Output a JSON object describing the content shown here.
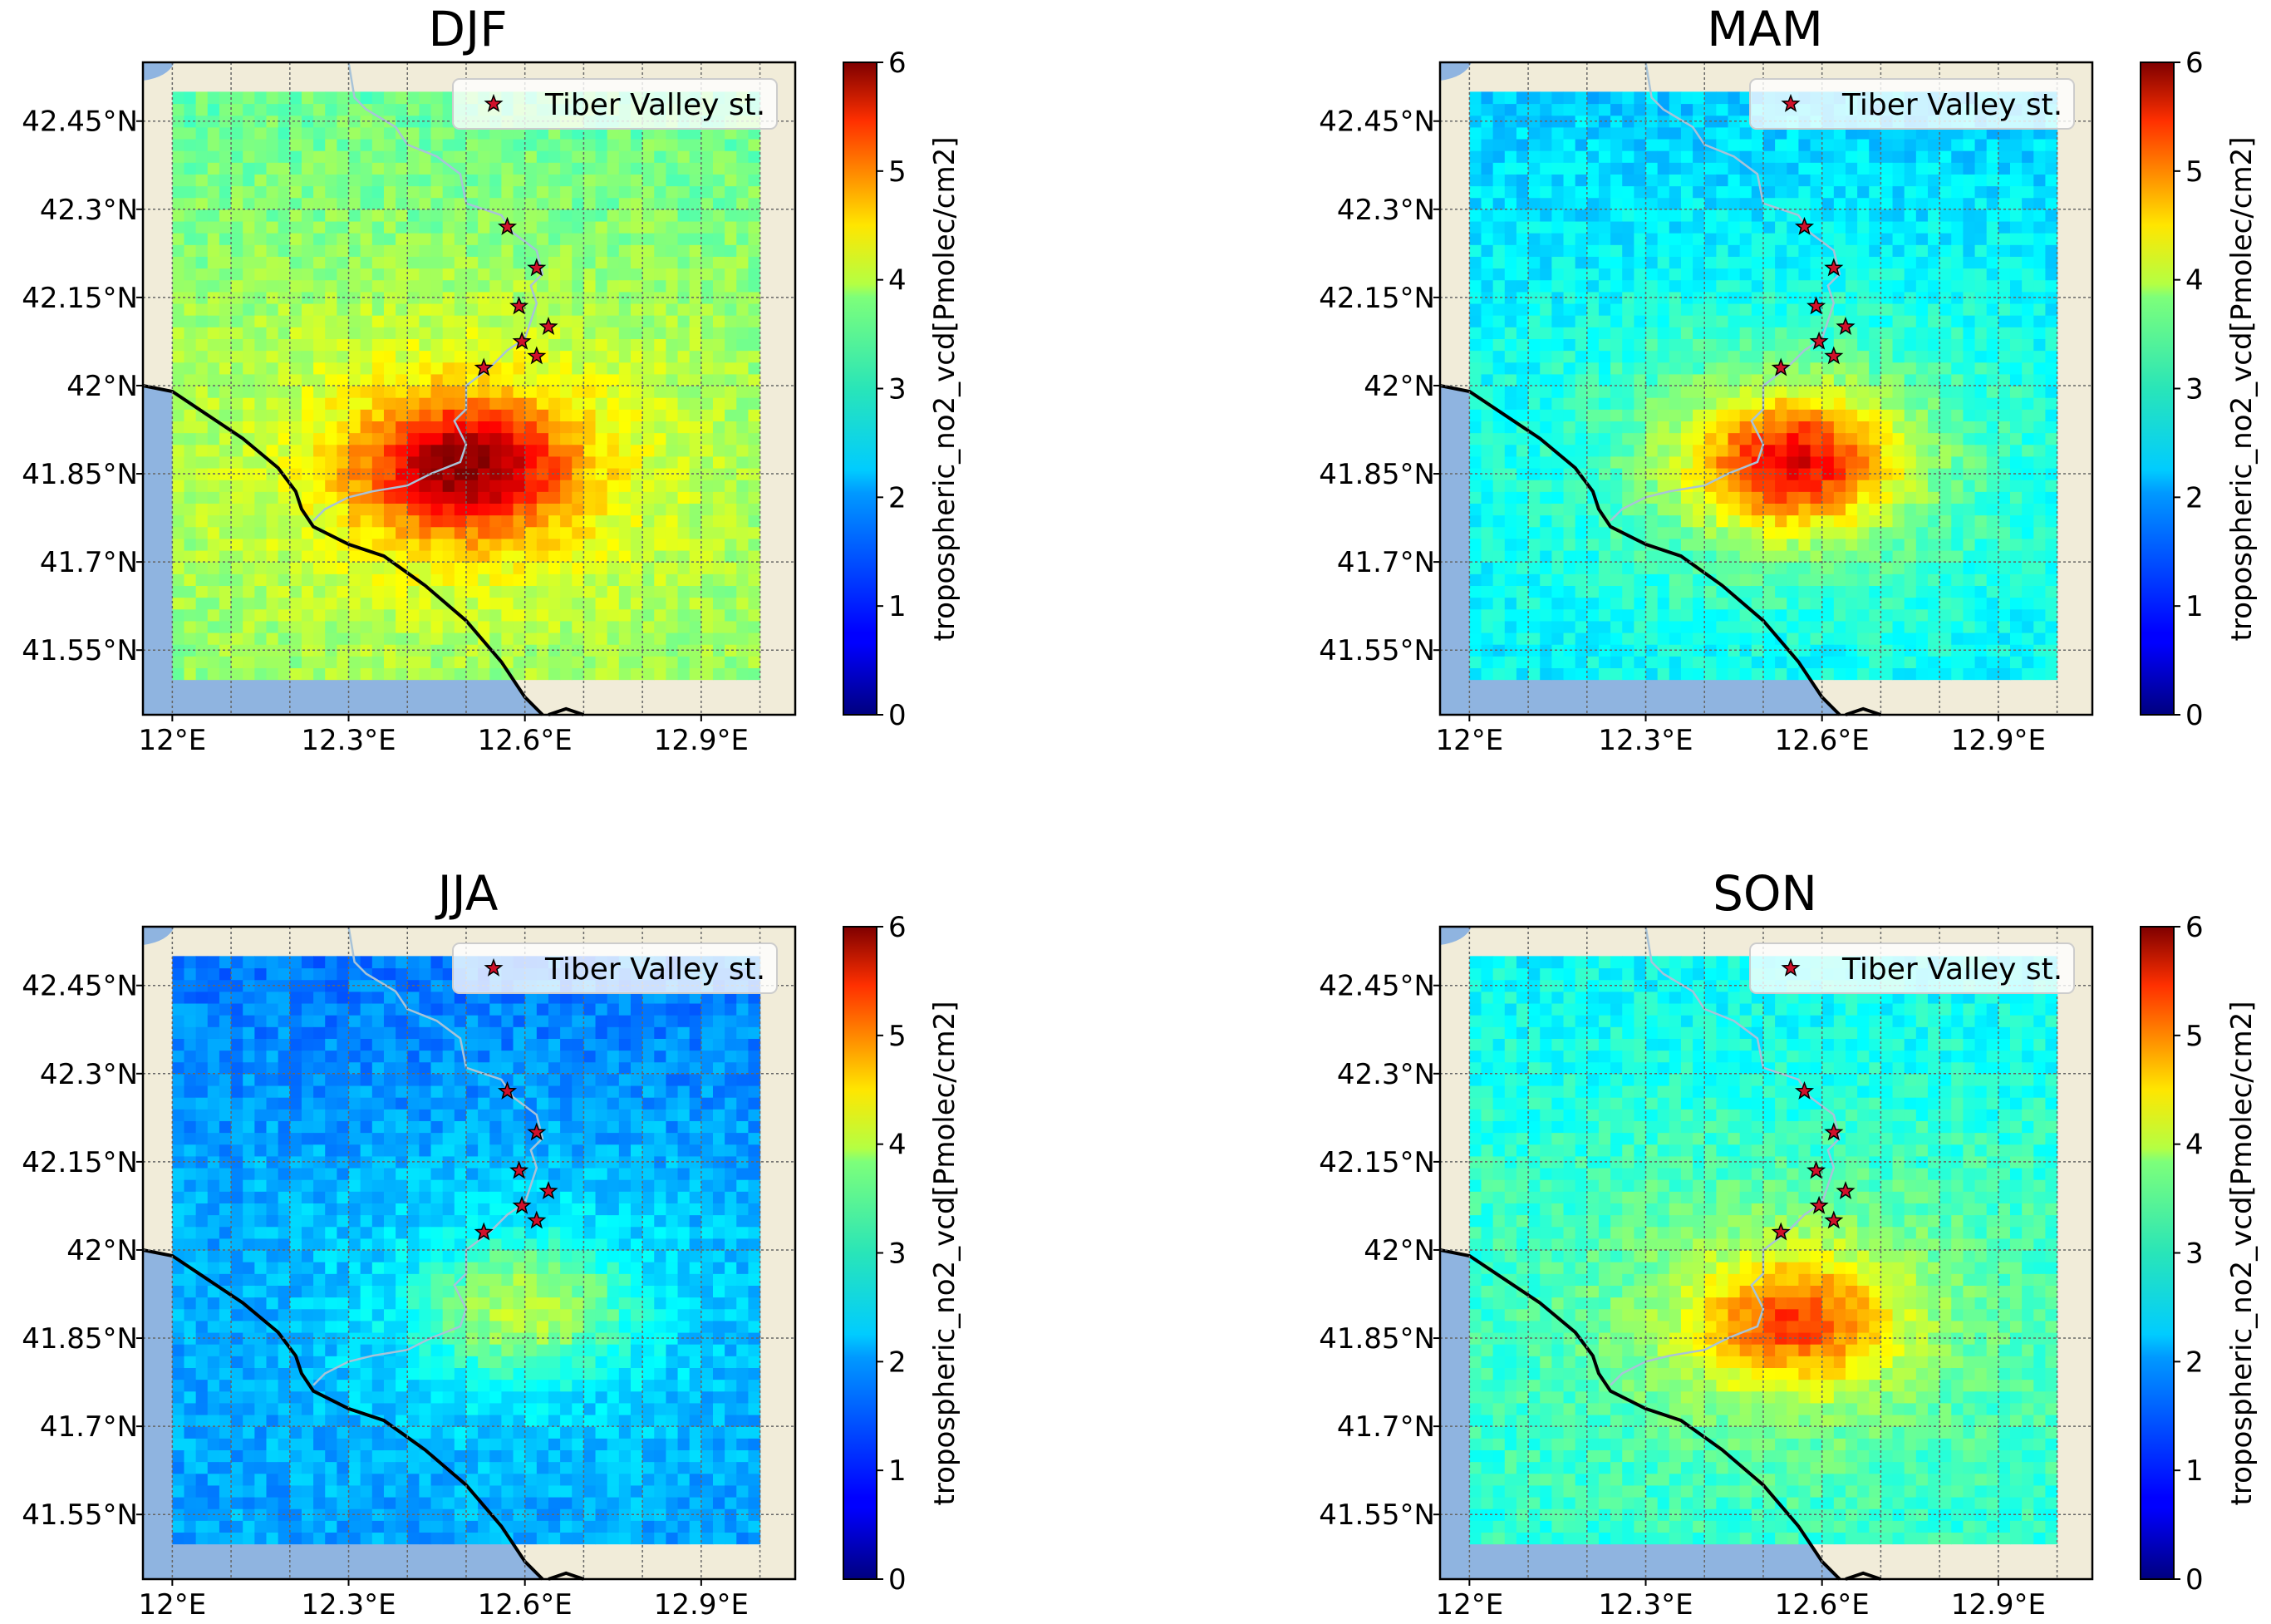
{
  "colors": {
    "land": "#f1ecd9",
    "water": "#8fb4e0",
    "river": "#a8c3d8",
    "coast": "#000000",
    "grid": "#666666",
    "star": "#d0102a"
  },
  "chart_data": [
    {
      "type": "heatmap",
      "title": "DJF",
      "hotspot": {
        "lon": 12.5,
        "lat": 41.86,
        "peak": 6.0
      },
      "background_level": 3.1,
      "legend": "Tiber Valley st.",
      "colorbar": {
        "label": "tropospheric_no2_vcd[Pmolec/cm2]",
        "min": 0,
        "max": 6,
        "ticks": [
          "0",
          "1",
          "2",
          "3",
          "4",
          "5",
          "6"
        ]
      }
    },
    {
      "type": "heatmap",
      "title": "MAM",
      "hotspot": {
        "lon": 12.55,
        "lat": 41.87,
        "peak": 5.4
      },
      "background_level": 2.2,
      "legend": "Tiber Valley st.",
      "colorbar": {
        "label": "tropospheric_no2_vcd[Pmolec/cm2]",
        "min": 0,
        "max": 6,
        "ticks": [
          "0",
          "1",
          "2",
          "3",
          "4",
          "5",
          "6"
        ]
      }
    },
    {
      "type": "heatmap",
      "title": "JJA",
      "hotspot": {
        "lon": 12.6,
        "lat": 41.9,
        "peak": 3.4
      },
      "background_level": 1.7,
      "legend": "Tiber Valley st.",
      "colorbar": {
        "label": "tropospheric_no2_vcd[Pmolec/cm2]",
        "min": 0,
        "max": 6,
        "ticks": [
          "0",
          "1",
          "2",
          "3",
          "4",
          "5",
          "6"
        ]
      }
    },
    {
      "type": "heatmap",
      "title": "SON",
      "hotspot": {
        "lon": 12.55,
        "lat": 41.88,
        "peak": 4.9
      },
      "background_level": 2.5,
      "legend": "Tiber Valley st.",
      "colorbar": {
        "label": "tropospheric_no2_vcd[Pmolec/cm2]",
        "min": 0,
        "max": 6,
        "ticks": [
          "0",
          "1",
          "2",
          "3",
          "4",
          "5",
          "6"
        ]
      }
    }
  ],
  "axes": {
    "lon_min": 11.95,
    "lon_max": 13.06,
    "lat_min": 41.44,
    "lat_max": 42.55,
    "data_lon_min": 12.0,
    "data_lon_max": 13.0,
    "data_lat_min": 41.5,
    "data_lat_max": 42.5,
    "xticks": [
      {
        "v": 12.0,
        "label": "12°E"
      },
      {
        "v": 12.3,
        "label": "12.3°E"
      },
      {
        "v": 12.6,
        "label": "12.6°E"
      },
      {
        "v": 12.9,
        "label": "12.9°E"
      }
    ],
    "yticks": [
      {
        "v": 42.45,
        "label": "42.45°N"
      },
      {
        "v": 42.3,
        "label": "42.3°N"
      },
      {
        "v": 42.15,
        "label": "42.15°N"
      },
      {
        "v": 42.0,
        "label": "42°N"
      },
      {
        "v": 41.85,
        "label": "41.85°N"
      },
      {
        "v": 41.7,
        "label": "41.7°N"
      },
      {
        "v": 41.55,
        "label": "41.55°N"
      }
    ],
    "gridlines_lon": [
      12.0,
      12.1,
      12.2,
      12.3,
      12.4,
      12.5,
      12.6,
      12.7,
      12.8,
      12.9,
      13.0
    ],
    "gridlines_lat": [
      41.55,
      41.7,
      41.85,
      42.0,
      42.15,
      42.3,
      42.45
    ]
  },
  "stations": [
    {
      "lon": 12.57,
      "lat": 42.27
    },
    {
      "lon": 12.62,
      "lat": 42.2
    },
    {
      "lon": 12.59,
      "lat": 42.135
    },
    {
      "lon": 12.64,
      "lat": 42.1
    },
    {
      "lon": 12.595,
      "lat": 42.075
    },
    {
      "lon": 12.62,
      "lat": 42.05
    },
    {
      "lon": 12.53,
      "lat": 42.03
    }
  ],
  "coastline": [
    [
      11.95,
      42.0
    ],
    [
      12.0,
      41.99
    ],
    [
      12.06,
      41.95
    ],
    [
      12.12,
      41.91
    ],
    [
      12.18,
      41.86
    ],
    [
      12.21,
      41.82
    ],
    [
      12.22,
      41.79
    ],
    [
      12.24,
      41.76
    ],
    [
      12.3,
      41.73
    ],
    [
      12.36,
      41.71
    ],
    [
      12.43,
      41.66
    ],
    [
      12.5,
      41.6
    ],
    [
      12.56,
      41.53
    ],
    [
      12.6,
      41.47
    ],
    [
      12.63,
      41.44
    ]
  ],
  "coastline_extra": [
    [
      12.64,
      41.44
    ],
    [
      12.67,
      41.45
    ],
    [
      12.7,
      41.44
    ]
  ],
  "river": [
    [
      12.3,
      42.55
    ],
    [
      12.31,
      42.49
    ],
    [
      12.33,
      42.47
    ],
    [
      12.38,
      42.44
    ],
    [
      12.4,
      42.41
    ],
    [
      12.45,
      42.39
    ],
    [
      12.49,
      42.36
    ],
    [
      12.5,
      42.31
    ],
    [
      12.56,
      42.29
    ],
    [
      12.58,
      42.26
    ],
    [
      12.62,
      42.23
    ],
    [
      12.63,
      42.19
    ],
    [
      12.61,
      42.17
    ],
    [
      12.62,
      42.14
    ],
    [
      12.61,
      42.11
    ],
    [
      12.6,
      42.08
    ],
    [
      12.57,
      42.06
    ],
    [
      12.54,
      42.03
    ],
    [
      12.5,
      42.0
    ],
    [
      12.5,
      41.96
    ],
    [
      12.48,
      41.94
    ],
    [
      12.5,
      41.9
    ],
    [
      12.49,
      41.87
    ],
    [
      12.44,
      41.85
    ],
    [
      12.4,
      41.83
    ],
    [
      12.34,
      41.82
    ],
    [
      12.3,
      41.81
    ],
    [
      12.26,
      41.79
    ],
    [
      12.24,
      41.77
    ]
  ]
}
